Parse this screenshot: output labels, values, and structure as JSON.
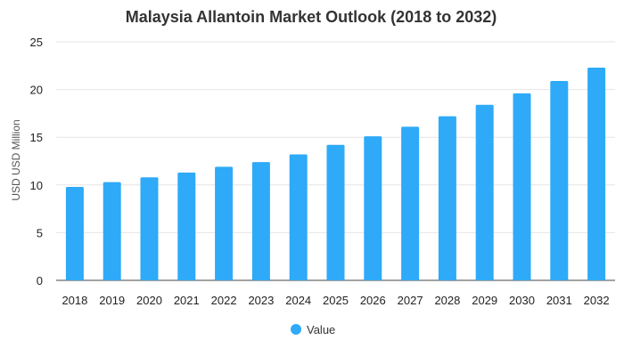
{
  "chart_data": {
    "type": "bar",
    "title": "Malaysia Allantoin Market Outlook (2018 to 2032)",
    "xlabel": "",
    "ylabel": "USD USD Million",
    "ylim": [
      0,
      25
    ],
    "yticks": [
      0,
      5,
      10,
      15,
      20,
      25
    ],
    "grid": true,
    "legend_position": "bottom",
    "categories": [
      "2018",
      "2019",
      "2020",
      "2021",
      "2022",
      "2023",
      "2024",
      "2025",
      "2026",
      "2027",
      "2028",
      "2029",
      "2030",
      "2031",
      "2032"
    ],
    "series": [
      {
        "name": "Value",
        "color": "#2eaaf8",
        "values": [
          9.8,
          10.3,
          10.8,
          11.3,
          11.9,
          12.4,
          13.2,
          14.2,
          15.1,
          16.1,
          17.2,
          18.4,
          19.6,
          20.9,
          22.3
        ]
      }
    ]
  }
}
